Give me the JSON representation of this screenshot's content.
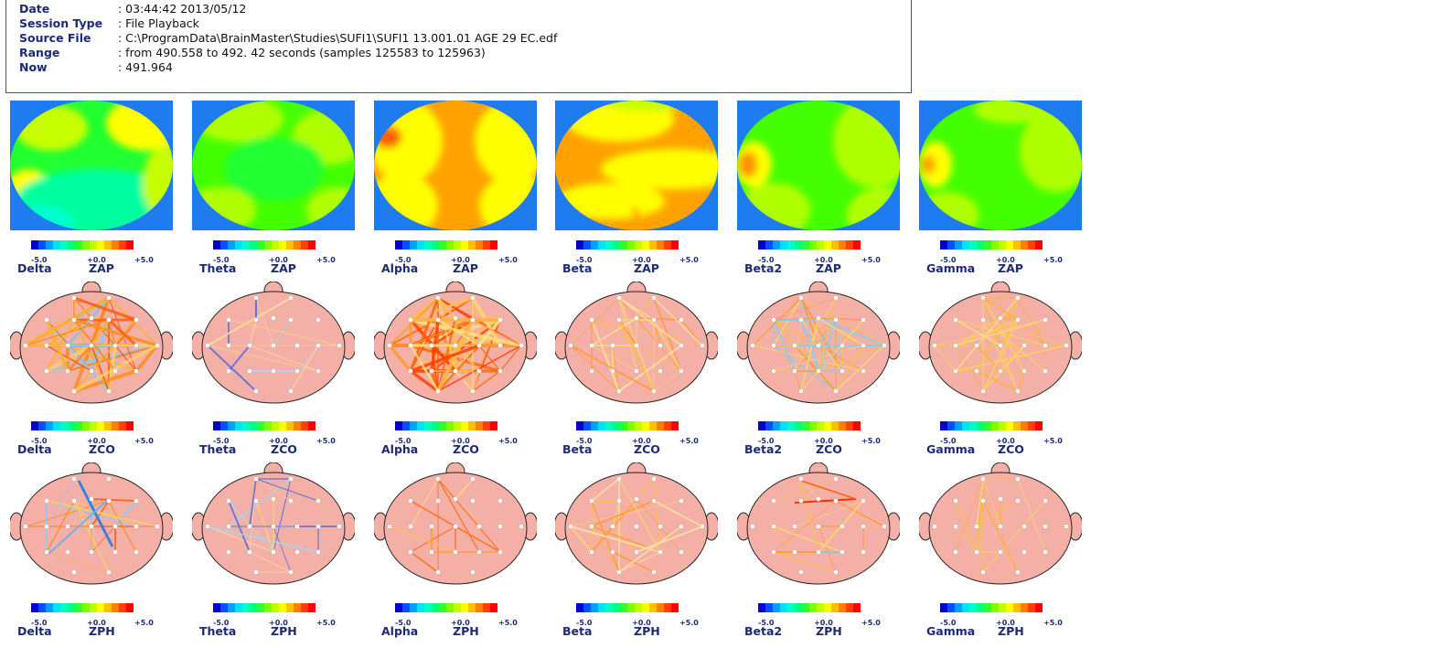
{
  "info": [
    {
      "key": "Date",
      "value": ": 03:44:42 2013/05/12"
    },
    {
      "key": "Session Type",
      "value": ": File Playback"
    },
    {
      "key": "Source File",
      "value": ": C:\\ProgramData\\BrainMaster\\Studies\\SUFI1\\SUFI1 13.001.01 AGE 29  EC.edf"
    },
    {
      "key": "Range",
      "value": ": from 490.558 to 492. 42 seconds (samples 125583 to 125963)"
    },
    {
      "key": "Now",
      "value": ": 491.964"
    }
  ],
  "scale": {
    "min": "-5.0",
    "mid": "+0.0",
    "max": "+5.0"
  },
  "colorbar": [
    "#0000c8",
    "#0050ff",
    "#00a0ff",
    "#00e0ff",
    "#00ffc0",
    "#00ff80",
    "#30ff30",
    "#80ff00",
    "#c0ff00",
    "#ffff00",
    "#ffc000",
    "#ff8000",
    "#ff4000",
    "#ff0000"
  ],
  "bands": [
    "Delta",
    "Theta",
    "Alpha",
    "Beta",
    "Beta2",
    "Gamma"
  ],
  "rows": [
    {
      "metric": "ZAP",
      "kind": "topomap"
    },
    {
      "metric": "ZCO",
      "kind": "connectivity"
    },
    {
      "metric": "ZPH",
      "kind": "connectivity"
    }
  ],
  "colors": {
    "label": "#1c2a78",
    "map_background": "#1e7cf0",
    "head_fill": "#f4b0a6"
  }
}
